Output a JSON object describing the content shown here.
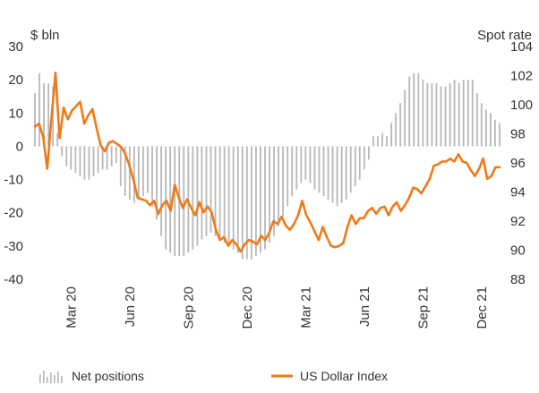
{
  "colors": {
    "bars": "#b8b8b8",
    "line": "#f07a18",
    "text": "#333333"
  },
  "chart_data": {
    "type": "bar+line",
    "left_axis": {
      "label": "$ bln",
      "ylim": [
        -40,
        30
      ],
      "ticks": [
        "30",
        "20",
        "10",
        "0",
        "-10",
        "-20",
        "-30",
        "-40"
      ]
    },
    "right_axis": {
      "label": "Spot rate",
      "ylim": [
        88,
        104
      ],
      "ticks": [
        "104",
        "102",
        "100",
        "98",
        "96",
        "94",
        "92",
        "90",
        "88"
      ]
    },
    "x_ticks": [
      "Mar 20",
      "Jun 20",
      "Sep 20",
      "Dec 20",
      "Mar 21",
      "Jun 21",
      "Sep 21",
      "Dec 21"
    ],
    "x_tick_weeks": [
      8,
      21,
      34,
      47,
      60,
      73,
      86,
      99
    ],
    "series": [
      {
        "name": "Net positions",
        "axis": "left",
        "values": [
          16,
          22,
          19,
          19,
          18,
          4,
          -3,
          -6,
          -7,
          -8,
          -9,
          -10,
          -10,
          -9,
          -8,
          -7,
          -7,
          -6,
          -5,
          -12,
          -15,
          -16,
          -17,
          -16,
          -15,
          -14,
          -18,
          -22,
          -27,
          -31,
          -32,
          -33,
          -33,
          -33,
          -32,
          -31,
          -30,
          -28,
          -27,
          -26,
          -27,
          -28,
          -29,
          -30,
          -31,
          -32,
          -34,
          -34,
          -34,
          -33,
          -32,
          -31,
          -29,
          -27,
          -24,
          -21,
          -18,
          -15,
          -13,
          -11,
          -10,
          -11,
          -13,
          -14,
          -15,
          -16,
          -17,
          -18,
          -17,
          -16,
          -14,
          -12,
          -10,
          -7,
          -4,
          3,
          3,
          4,
          3,
          7,
          10,
          13,
          17,
          21,
          22,
          22,
          20,
          19,
          19,
          19,
          18,
          18,
          19,
          20,
          19,
          20,
          20,
          20,
          16,
          13,
          11,
          10,
          8,
          7
        ]
      },
      {
        "name": "US Dollar Index",
        "axis": "right",
        "values": [
          98.5,
          98.7,
          97.8,
          95.6,
          99.0,
          102.2,
          97.7,
          99.8,
          99.0,
          99.6,
          99.9,
          100.2,
          98.7,
          99.3,
          99.7,
          98.4,
          97.2,
          96.8,
          97.4,
          97.5,
          97.3,
          97.1,
          96.6,
          95.8,
          94.8,
          93.6,
          93.5,
          93.4,
          93.1,
          93.4,
          92.5,
          93.1,
          93.4,
          92.7,
          94.5,
          93.6,
          92.9,
          93.5,
          92.9,
          92.4,
          93.3,
          92.6,
          93.0,
          92.6,
          91.4,
          90.7,
          90.9,
          90.3,
          90.7,
          90.4,
          89.9,
          90.4,
          90.7,
          90.6,
          90.4,
          91.0,
          90.7,
          91.2,
          92.0,
          91.8,
          92.3,
          91.7,
          91.4,
          91.8,
          92.4,
          93.4,
          92.4,
          91.9,
          91.3,
          90.7,
          91.6,
          90.9,
          90.3,
          90.2,
          90.3,
          90.5,
          91.6,
          92.4,
          91.8,
          92.2,
          92.2,
          92.7,
          92.9,
          92.5,
          92.9,
          93.0,
          92.4,
          93.0,
          93.3,
          92.7,
          93.1,
          93.6,
          94.3,
          94.2,
          93.9,
          94.4,
          94.9,
          95.8,
          95.9,
          96.1,
          96.1,
          96.3,
          96.1,
          96.6,
          96.1,
          96.0,
          95.5,
          95.1,
          95.6,
          96.3,
          94.9,
          95.1,
          95.7,
          95.7
        ]
      }
    ]
  },
  "legend": {
    "bars_label": "Net positions",
    "line_label": "US Dollar Index"
  }
}
